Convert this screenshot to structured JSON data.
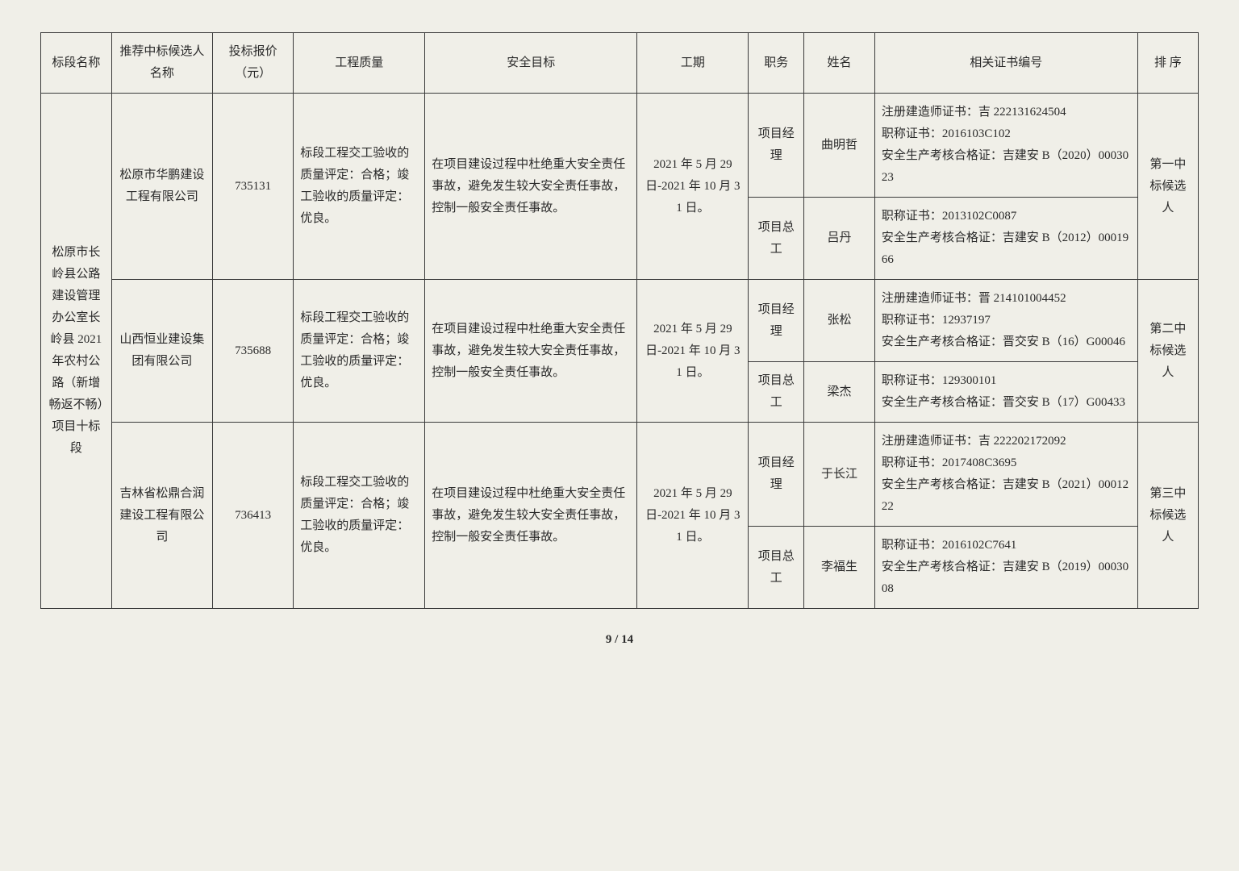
{
  "headers": {
    "c0": "标段名称",
    "c1": "推荐中标候选人名称",
    "c2": "投标报价（元）",
    "c3": "工程质量",
    "c4": "安全目标",
    "c5": "工期",
    "c6": "职务",
    "c7": "姓名",
    "c8": "相关证书编号",
    "c9": "排 序"
  },
  "section_name": "松原市长岭县公路建设管理办公室长岭县 2021 年农村公路（新增畅返不畅）项目十标段",
  "quality_text": "标段工程交工验收的质量评定：合格；竣工验收的质量评定：优良。",
  "safety_text": "在项目建设过程中杜绝重大安全责任事故，避免发生较大安全责任事故，控制一般安全责任事故。",
  "period_text": "2021 年 5 月 29 日-2021 年 10 月 31 日。",
  "role_pm": "项目经理",
  "role_ce": "项目总工",
  "bidders": [
    {
      "company": "松原市华鹏建设工程有限公司",
      "price": "735131",
      "rank": "第一中标候选人",
      "pm_name": "曲明哲",
      "pm_cert": "注册建造师证书：吉 222131624504\n职称证书：2016103C102\n安全生产考核合格证：吉建安 B（2020）0003023",
      "ce_name": "吕丹",
      "ce_cert": "职称证书：2013102C0087\n安全生产考核合格证：吉建安 B（2012）0001966"
    },
    {
      "company": "山西恒业建设集团有限公司",
      "price": "735688",
      "rank": "第二中标候选人",
      "pm_name": "张松",
      "pm_cert": "注册建造师证书：晋 214101004452\n职称证书：12937197\n安全生产考核合格证：晋交安 B（16）G00046",
      "ce_name": "梁杰",
      "ce_cert": "职称证书：129300101\n安全生产考核合格证：晋交安 B（17）G00433"
    },
    {
      "company": "吉林省松鼎合润建设工程有限公司",
      "price": "736413",
      "rank": "第三中标候选人",
      "pm_name": "于长江",
      "pm_cert": "注册建造师证书：吉 222202172092\n职称证书：2017408C3695\n安全生产考核合格证：吉建安 B（2021）0001222",
      "ce_name": "李福生",
      "ce_cert": "职称证书：2016102C7641\n安全生产考核合格证：吉建安 B（2019）0003008"
    }
  ],
  "page": "9 / 14",
  "col_widths": [
    "70",
    "100",
    "80",
    "130",
    "210",
    "110",
    "55",
    "70",
    "260",
    "60"
  ]
}
